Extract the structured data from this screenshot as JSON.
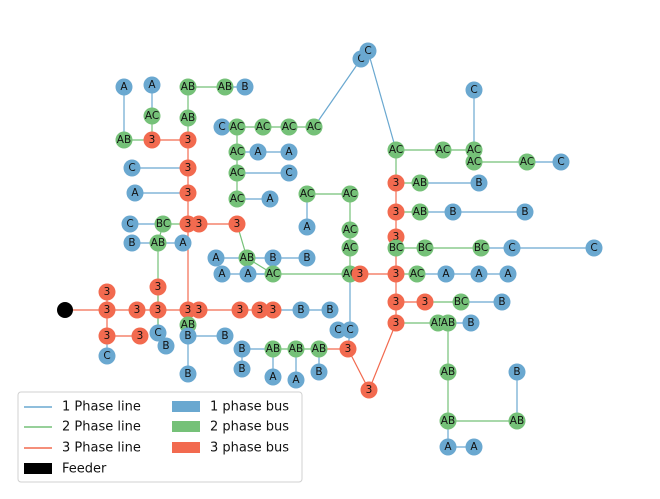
{
  "colors": {
    "one_phase": "#6aa8d0",
    "two_phase": "#75c178",
    "three_phase": "#f26a4f",
    "feeder": "#000000"
  },
  "legend": {
    "one_phase_line": "1 Phase line",
    "two_phase_line": "2 Phase line",
    "three_phase_line": "3 Phase line",
    "feeder": "Feeder",
    "one_phase_bus": "1 phase bus",
    "two_phase_bus": "2 phase bus",
    "three_phase_bus": "3 phase bus"
  },
  "nodes": [
    {
      "id": "feeder",
      "label": "",
      "phase": "feeder"
    },
    {
      "id": "n1",
      "label": "3",
      "phase": 3
    },
    {
      "id": "n2",
      "label": "3",
      "phase": 3
    },
    {
      "id": "n3",
      "label": "3",
      "phase": 3
    },
    {
      "id": "n4",
      "label": "3",
      "phase": 3
    },
    {
      "id": "n5",
      "label": "3",
      "phase": 3
    },
    {
      "id": "n6",
      "label": "3",
      "phase": 3
    },
    {
      "id": "n7",
      "label": "3",
      "phase": 3
    },
    {
      "id": "n8",
      "label": "3",
      "phase": 3
    },
    {
      "id": "n9",
      "label": "3",
      "phase": 3
    },
    {
      "id": "n10",
      "label": "3",
      "phase": 3
    },
    {
      "id": "n11",
      "label": "C",
      "phase": 1
    },
    {
      "id": "n12",
      "label": "C",
      "phase": 1
    },
    {
      "id": "n13",
      "label": "B",
      "phase": 1
    },
    {
      "id": "n14",
      "label": "AB",
      "phase": 2
    },
    {
      "id": "n15",
      "label": "B",
      "phase": 1
    },
    {
      "id": "n16",
      "label": "B",
      "phase": 1
    },
    {
      "id": "n17",
      "label": "B",
      "phase": 1
    },
    {
      "id": "n18",
      "label": "3",
      "phase": 3
    },
    {
      "id": "n19",
      "label": "3",
      "phase": 3
    },
    {
      "id": "n20",
      "label": "3",
      "phase": 3
    },
    {
      "id": "n21",
      "label": "B",
      "phase": 1
    },
    {
      "id": "n22",
      "label": "B",
      "phase": 1
    },
    {
      "id": "n23",
      "label": "3",
      "phase": 3
    },
    {
      "id": "n24",
      "label": "3",
      "phase": 3
    },
    {
      "id": "n25",
      "label": "3",
      "phase": 3
    },
    {
      "id": "n26",
      "label": "3",
      "phase": 3
    },
    {
      "id": "n27",
      "label": "3",
      "phase": 3
    },
    {
      "id": "n28",
      "label": "3",
      "phase": 3
    },
    {
      "id": "n29",
      "label": "3",
      "phase": 3
    },
    {
      "id": "n30",
      "label": "3",
      "phase": 3
    },
    {
      "id": "n31",
      "label": "C",
      "phase": 1
    },
    {
      "id": "n32",
      "label": "BC",
      "phase": 2
    },
    {
      "id": "n33",
      "label": "A",
      "phase": 1
    },
    {
      "id": "n34",
      "label": "B",
      "phase": 1
    },
    {
      "id": "n35",
      "label": "AB",
      "phase": 2
    },
    {
      "id": "n36",
      "label": "A",
      "phase": 1
    },
    {
      "id": "n37",
      "label": "AB",
      "phase": 2
    },
    {
      "id": "n38",
      "label": "B",
      "phase": 1
    },
    {
      "id": "n39",
      "label": "B",
      "phase": 1
    },
    {
      "id": "n40",
      "label": "A",
      "phase": 1
    },
    {
      "id": "n41",
      "label": "A",
      "phase": 1
    },
    {
      "id": "n42",
      "label": "A",
      "phase": 1
    },
    {
      "id": "n43",
      "label": "AC",
      "phase": 2
    },
    {
      "id": "n44",
      "label": "C",
      "phase": 1
    },
    {
      "id": "n45",
      "label": "AC",
      "phase": 2
    },
    {
      "id": "n46",
      "label": "AC",
      "phase": 2
    },
    {
      "id": "n47",
      "label": "AC",
      "phase": 2
    },
    {
      "id": "n48",
      "label": "AC",
      "phase": 2
    },
    {
      "id": "n49",
      "label": "A",
      "phase": 1
    },
    {
      "id": "n50",
      "label": "A",
      "phase": 1
    },
    {
      "id": "n51",
      "label": "AC",
      "phase": 2
    },
    {
      "id": "n52",
      "label": "C",
      "phase": 1
    },
    {
      "id": "n53",
      "label": "AC",
      "phase": 2
    },
    {
      "id": "n54",
      "label": "A",
      "phase": 1
    },
    {
      "id": "n55",
      "label": "C",
      "phase": 1
    },
    {
      "id": "n56",
      "label": "C",
      "phase": 1
    },
    {
      "id": "n57",
      "label": "A",
      "phase": 1
    },
    {
      "id": "n58",
      "label": "AC",
      "phase": 2
    },
    {
      "id": "n59",
      "label": "AB",
      "phase": 2
    },
    {
      "id": "n60",
      "label": "AB",
      "phase": 2
    },
    {
      "id": "n61",
      "label": "AB",
      "phase": 2
    },
    {
      "id": "n62",
      "label": "AB",
      "phase": 2
    },
    {
      "id": "n63",
      "label": "B",
      "phase": 1
    },
    {
      "id": "n64",
      "label": "A",
      "phase": 1
    },
    {
      "id": "n65",
      "label": "AC",
      "phase": 2
    },
    {
      "id": "n66",
      "label": "A",
      "phase": 1
    },
    {
      "id": "n67",
      "label": "AC",
      "phase": 2
    },
    {
      "id": "n68",
      "label": "AC",
      "phase": 2
    },
    {
      "id": "n69",
      "label": "AC",
      "phase": 2
    },
    {
      "id": "n70",
      "label": "3",
      "phase": 3
    },
    {
      "id": "n71",
      "label": "C",
      "phase": 1
    },
    {
      "id": "n72",
      "label": "C",
      "phase": 1
    },
    {
      "id": "n73",
      "label": "AB",
      "phase": 2
    },
    {
      "id": "n74",
      "label": "AB",
      "phase": 2
    },
    {
      "id": "n75",
      "label": "AB",
      "phase": 2
    },
    {
      "id": "n76",
      "label": "B",
      "phase": 1
    },
    {
      "id": "n77",
      "label": "B",
      "phase": 1
    },
    {
      "id": "n78",
      "label": "A",
      "phase": 1
    },
    {
      "id": "n79",
      "label": "A",
      "phase": 1
    },
    {
      "id": "n80",
      "label": "B",
      "phase": 1
    },
    {
      "id": "n81",
      "label": "3",
      "phase": 3
    },
    {
      "id": "n82",
      "label": "3",
      "phase": 3
    },
    {
      "id": "n83",
      "label": "3",
      "phase": 3
    },
    {
      "id": "n84",
      "label": "3",
      "phase": 3
    },
    {
      "id": "n85",
      "label": "3",
      "phase": 3
    },
    {
      "id": "n86",
      "label": "3",
      "phase": 3
    },
    {
      "id": "n87",
      "label": "3",
      "phase": 3
    },
    {
      "id": "n88",
      "label": "AC",
      "phase": 2
    },
    {
      "id": "n89",
      "label": "AC",
      "phase": 2
    },
    {
      "id": "n90",
      "label": "AC",
      "phase": 2
    },
    {
      "id": "n91",
      "label": "AC",
      "phase": 2
    },
    {
      "id": "n92",
      "label": "AC",
      "phase": 2
    },
    {
      "id": "n93",
      "label": "C",
      "phase": 1
    },
    {
      "id": "n94",
      "label": "C",
      "phase": 1
    },
    {
      "id": "n95",
      "label": "C",
      "phase": 1
    },
    {
      "id": "n96",
      "label": "C",
      "phase": 1
    },
    {
      "id": "n97",
      "label": "AB",
      "phase": 2
    },
    {
      "id": "n98",
      "label": "B",
      "phase": 1
    },
    {
      "id": "n99",
      "label": "AB",
      "phase": 2
    },
    {
      "id": "n100",
      "label": "B",
      "phase": 1
    },
    {
      "id": "n101",
      "label": "B",
      "phase": 1
    },
    {
      "id": "n102",
      "label": "BC",
      "phase": 2
    },
    {
      "id": "n103",
      "label": "BC",
      "phase": 2
    },
    {
      "id": "n104",
      "label": "BC",
      "phase": 2
    },
    {
      "id": "n105",
      "label": "C",
      "phase": 1
    },
    {
      "id": "n106",
      "label": "C",
      "phase": 1
    },
    {
      "id": "n107",
      "label": "AC",
      "phase": 2
    },
    {
      "id": "n108",
      "label": "A",
      "phase": 1
    },
    {
      "id": "n109",
      "label": "A",
      "phase": 1
    },
    {
      "id": "n110",
      "label": "A",
      "phase": 1
    },
    {
      "id": "n111",
      "label": "BC",
      "phase": 2
    },
    {
      "id": "n112",
      "label": "B",
      "phase": 1
    },
    {
      "id": "n113",
      "label": "AB",
      "phase": 2
    },
    {
      "id": "n114",
      "label": "AB",
      "phase": 2
    },
    {
      "id": "n115",
      "label": "B",
      "phase": 1
    },
    {
      "id": "n116",
      "label": "AB",
      "phase": 2
    },
    {
      "id": "n117",
      "label": "AB",
      "phase": 2
    },
    {
      "id": "n118",
      "label": "AB",
      "phase": 2
    },
    {
      "id": "n119",
      "label": "B",
      "phase": 1
    },
    {
      "id": "n120",
      "label": "A",
      "phase": 1
    },
    {
      "id": "n121",
      "label": "A",
      "phase": 1
    },
    {
      "id": "n122",
      "label": "C",
      "phase": 1
    },
    {
      "id": "n123",
      "label": "A",
      "phase": 1
    },
    {
      "id": "n124",
      "label": "AB",
      "phase": 2
    },
    {
      "id": "n125",
      "label": "A",
      "phase": 1
    },
    {
      "id": "n126",
      "label": "AC",
      "phase": 2
    },
    {
      "id": "n127",
      "label": "AB",
      "phase": 2
    },
    {
      "id": "n128",
      "label": "AB",
      "phase": 2
    },
    {
      "id": "n129",
      "label": "B",
      "phase": 1
    }
  ],
  "edges": [
    [
      "feeder",
      "n1",
      3
    ],
    [
      "n1",
      "n2",
      3
    ],
    [
      "n2",
      "n3",
      3
    ],
    [
      "n3",
      "n4",
      3
    ],
    [
      "n4",
      "n5",
      3
    ],
    [
      "n5",
      "n6",
      3
    ],
    [
      "n6",
      "n7",
      3
    ],
    [
      "n7",
      "n8",
      3
    ],
    [
      "n1",
      "n9",
      3
    ],
    [
      "n1",
      "n10",
      3
    ],
    [
      "n10",
      "n11",
      1
    ],
    [
      "n10",
      "n30",
      3
    ],
    [
      "n3",
      "n29",
      3
    ],
    [
      "n3",
      "n12",
      1
    ],
    [
      "n12",
      "n13",
      1
    ],
    [
      "n3",
      "n14",
      2
    ],
    [
      "n14",
      "n15",
      1
    ],
    [
      "n15",
      "n16",
      1
    ],
    [
      "n15",
      "n17",
      1
    ],
    [
      "n4",
      "n23",
      3
    ],
    [
      "n23",
      "n24",
      3
    ],
    [
      "n24",
      "n25",
      3
    ],
    [
      "n25",
      "n26",
      3
    ],
    [
      "n26",
      "n27",
      3
    ],
    [
      "n27",
      "n28",
      3
    ],
    [
      "n23",
      "n31",
      1
    ],
    [
      "n23",
      "n32",
      2
    ],
    [
      "n32",
      "n35",
      2
    ],
    [
      "n35",
      "n34",
      1
    ],
    [
      "n23",
      "n36",
      1
    ],
    [
      "n35",
      "n31",
      2
    ],
    [
      "n18",
      "n19",
      3
    ],
    [
      "n18",
      "n37",
      2
    ],
    [
      "n37",
      "n38",
      1
    ],
    [
      "n38",
      "n39",
      1
    ],
    [
      "n37",
      "n40",
      1
    ],
    [
      "n8",
      "n21",
      1
    ],
    [
      "n21",
      "n22",
      1
    ],
    [
      "n26",
      "n41",
      1
    ],
    [
      "n26",
      "n42",
      1
    ],
    [
      "n26",
      "n127",
      3
    ],
    [
      "n127",
      "n128",
      2
    ],
    [
      "n128",
      "n129",
      1
    ],
    [
      "n127",
      "n124",
      2
    ],
    [
      "n124",
      "n123",
      1
    ],
    [
      "n124",
      "n125",
      1
    ],
    [
      "n127",
      "n122",
      1
    ],
    [
      "n44",
      "n43",
      1
    ],
    [
      "n43",
      "n45",
      2
    ],
    [
      "n45",
      "n46",
      2
    ],
    [
      "n46",
      "n47",
      2
    ],
    [
      "n47",
      "n55",
      1
    ],
    [
      "n55",
      "n56",
      1
    ],
    [
      "n56",
      "n93",
      1
    ],
    [
      "n43",
      "n48",
      2
    ],
    [
      "n48",
      "n49",
      1
    ],
    [
      "n49",
      "n50",
      1
    ],
    [
      "n48",
      "n51",
      2
    ],
    [
      "n51",
      "n52",
      1
    ],
    [
      "n51",
      "n53",
      2
    ],
    [
      "n53",
      "n54",
      1
    ],
    [
      "n57",
      "n58",
      2
    ],
    [
      "n58",
      "n59",
      2
    ],
    [
      "n59",
      "n60",
      1
    ],
    [
      "n60",
      "n61",
      1
    ],
    [
      "n58",
      "n62",
      1
    ],
    [
      "n62",
      "n63",
      1
    ],
    [
      "n58",
      "n70",
      2
    ],
    [
      "n70",
      "n81",
      3
    ],
    [
      "n58",
      "n64",
      1
    ],
    [
      "n65",
      "n66",
      1
    ],
    [
      "n65",
      "n67",
      2
    ],
    [
      "n67",
      "n68",
      2
    ],
    [
      "n68",
      "n69",
      2
    ],
    [
      "n69",
      "n70",
      2
    ],
    [
      "n69",
      "n71",
      1
    ],
    [
      "n71",
      "n72",
      1
    ],
    [
      "n81",
      "n88",
      2
    ],
    [
      "n88",
      "n89",
      2
    ],
    [
      "n89",
      "n90",
      2
    ],
    [
      "n89",
      "n91",
      2
    ],
    [
      "n91",
      "n92",
      2
    ],
    [
      "n92",
      "n94",
      1
    ],
    [
      "n93",
      "n88",
      1
    ],
    [
      "n88",
      "n82",
      3
    ],
    [
      "n82",
      "n97",
      2
    ],
    [
      "n97",
      "n98",
      1
    ],
    [
      "n82",
      "n83",
      3
    ],
    [
      "n83",
      "n99",
      2
    ],
    [
      "n99",
      "n100",
      1
    ],
    [
      "n100",
      "n101",
      1
    ],
    [
      "n83",
      "n84",
      3
    ],
    [
      "n84",
      "n102",
      2
    ],
    [
      "n102",
      "n103",
      2
    ],
    [
      "n103",
      "n104",
      2
    ],
    [
      "n104",
      "n105",
      1
    ],
    [
      "n105",
      "n106",
      1
    ],
    [
      "n84",
      "n81",
      3
    ],
    [
      "n81",
      "n107",
      2
    ],
    [
      "n107",
      "n108",
      1
    ],
    [
      "n108",
      "n109",
      1
    ],
    [
      "n109",
      "n110",
      1
    ],
    [
      "n81",
      "n85",
      3
    ],
    [
      "n85",
      "n86",
      3
    ],
    [
      "n86",
      "n111",
      2
    ],
    [
      "n111",
      "n112",
      1
    ],
    [
      "n85",
      "n87",
      3
    ],
    [
      "n87",
      "n113",
      2
    ],
    [
      "n113",
      "n114",
      2
    ],
    [
      "n114",
      "n115",
      1
    ],
    [
      "n114",
      "n116",
      2
    ],
    [
      "n116",
      "n117",
      2
    ],
    [
      "n117",
      "n118",
      2
    ],
    [
      "n118",
      "n119",
      1
    ],
    [
      "n117",
      "n120",
      1
    ],
    [
      "n120",
      "n121",
      1
    ],
    [
      "n87",
      "n126",
      3
    ],
    [
      "n74",
      "n73",
      2
    ],
    [
      "n73",
      "n75",
      2
    ],
    [
      "n75",
      "n76",
      1
    ],
    [
      "n73",
      "n77",
      1
    ],
    [
      "n74",
      "n78",
      1
    ],
    [
      "n75",
      "n79",
      1
    ],
    [
      "n75",
      "n80",
      1
    ],
    [
      "n80",
      "n126",
      3
    ],
    [
      "n20",
      "n80",
      3
    ],
    [
      "n6",
      "n20",
      3
    ]
  ]
}
